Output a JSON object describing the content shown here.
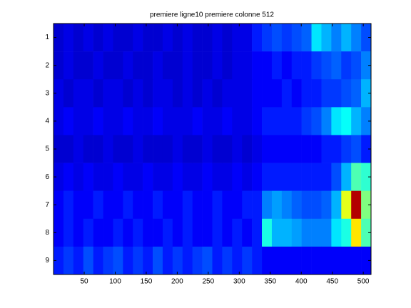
{
  "chart_data": {
    "type": "heatmap",
    "title": "premiere ligne10 premiere colonne 512",
    "colormap": "jet",
    "clim": [
      0,
      1
    ],
    "xbins": [
      0.5,
      16.5,
      32.5,
      48.5,
      64.5,
      80.5,
      96.5,
      112.5,
      128.5,
      144.5,
      160.5,
      176.5,
      192.5,
      208.5,
      224.5,
      240.5,
      256.5,
      272.5,
      288.5,
      304.5,
      320.5,
      336.5,
      352.5,
      368.5,
      384.5,
      400.5,
      416.5,
      432.5,
      448.5,
      464.5,
      480.5,
      496.5,
      512.5
    ],
    "y": [
      1,
      2,
      3,
      4,
      5,
      6,
      7,
      8,
      9
    ],
    "values": [
      [
        0.08,
        0.1,
        0.08,
        0.1,
        0.08,
        0.1,
        0.08,
        0.08,
        0.1,
        0.08,
        0.08,
        0.1,
        0.08,
        0.1,
        0.08,
        0.08,
        0.1,
        0.08,
        0.1,
        0.1,
        0.15,
        0.18,
        0.2,
        0.18,
        0.2,
        0.22,
        0.35,
        0.3,
        0.25,
        0.3,
        0.25,
        0.2
      ],
      [
        0.08,
        0.1,
        0.08,
        0.08,
        0.1,
        0.08,
        0.08,
        0.1,
        0.08,
        0.08,
        0.1,
        0.08,
        0.08,
        0.1,
        0.08,
        0.08,
        0.1,
        0.08,
        0.1,
        0.1,
        0.12,
        0.12,
        0.15,
        0.12,
        0.15,
        0.15,
        0.18,
        0.2,
        0.22,
        0.18,
        0.2,
        0.25
      ],
      [
        0.1,
        0.08,
        0.1,
        0.1,
        0.08,
        0.1,
        0.1,
        0.08,
        0.1,
        0.08,
        0.1,
        0.1,
        0.08,
        0.1,
        0.08,
        0.1,
        0.08,
        0.1,
        0.1,
        0.1,
        0.12,
        0.12,
        0.12,
        0.15,
        0.12,
        0.15,
        0.15,
        0.18,
        0.18,
        0.2,
        0.22,
        0.3
      ],
      [
        0.1,
        0.12,
        0.1,
        0.1,
        0.12,
        0.1,
        0.1,
        0.12,
        0.1,
        0.1,
        0.12,
        0.1,
        0.1,
        0.1,
        0.12,
        0.1,
        0.1,
        0.12,
        0.1,
        0.1,
        0.12,
        0.15,
        0.15,
        0.15,
        0.15,
        0.18,
        0.2,
        0.25,
        0.35,
        0.38,
        0.3,
        0.25
      ],
      [
        0.08,
        0.08,
        0.1,
        0.08,
        0.08,
        0.1,
        0.08,
        0.08,
        0.1,
        0.08,
        0.08,
        0.08,
        0.1,
        0.08,
        0.08,
        0.1,
        0.08,
        0.08,
        0.1,
        0.08,
        0.1,
        0.12,
        0.12,
        0.12,
        0.12,
        0.12,
        0.12,
        0.15,
        0.15,
        0.18,
        0.2,
        0.15
      ],
      [
        0.1,
        0.12,
        0.1,
        0.12,
        0.1,
        0.1,
        0.12,
        0.1,
        0.1,
        0.12,
        0.1,
        0.1,
        0.12,
        0.1,
        0.1,
        0.12,
        0.1,
        0.1,
        0.12,
        0.1,
        0.12,
        0.15,
        0.15,
        0.15,
        0.15,
        0.15,
        0.15,
        0.15,
        0.2,
        0.3,
        0.45,
        0.42
      ],
      [
        0.12,
        0.15,
        0.12,
        0.12,
        0.15,
        0.12,
        0.12,
        0.15,
        0.12,
        0.12,
        0.15,
        0.12,
        0.12,
        0.15,
        0.12,
        0.12,
        0.15,
        0.12,
        0.12,
        0.15,
        0.15,
        0.25,
        0.28,
        0.25,
        0.22,
        0.2,
        0.2,
        0.22,
        0.3,
        0.6,
        0.95,
        0.5
      ],
      [
        0.12,
        0.15,
        0.12,
        0.15,
        0.12,
        0.12,
        0.15,
        0.12,
        0.15,
        0.12,
        0.12,
        0.15,
        0.12,
        0.15,
        0.12,
        0.12,
        0.15,
        0.12,
        0.15,
        0.12,
        0.15,
        0.4,
        0.3,
        0.3,
        0.28,
        0.25,
        0.25,
        0.25,
        0.35,
        0.4,
        0.65,
        0.45
      ],
      [
        0.15,
        0.18,
        0.15,
        0.2,
        0.15,
        0.18,
        0.2,
        0.15,
        0.18,
        0.15,
        0.2,
        0.15,
        0.18,
        0.15,
        0.18,
        0.2,
        0.15,
        0.18,
        0.15,
        0.18,
        0.15,
        0.12,
        0.12,
        0.12,
        0.12,
        0.12,
        0.12,
        0.12,
        0.12,
        0.12,
        0.12,
        0.12
      ]
    ],
    "xlim": [
      0.5,
      512.5
    ],
    "ylim": [
      0.5,
      9.5
    ],
    "y_reversed": true,
    "xticks": [
      50,
      100,
      150,
      200,
      250,
      300,
      350,
      400,
      450,
      500
    ],
    "yticks": [
      1,
      2,
      3,
      4,
      5,
      6,
      7,
      8,
      9
    ]
  }
}
